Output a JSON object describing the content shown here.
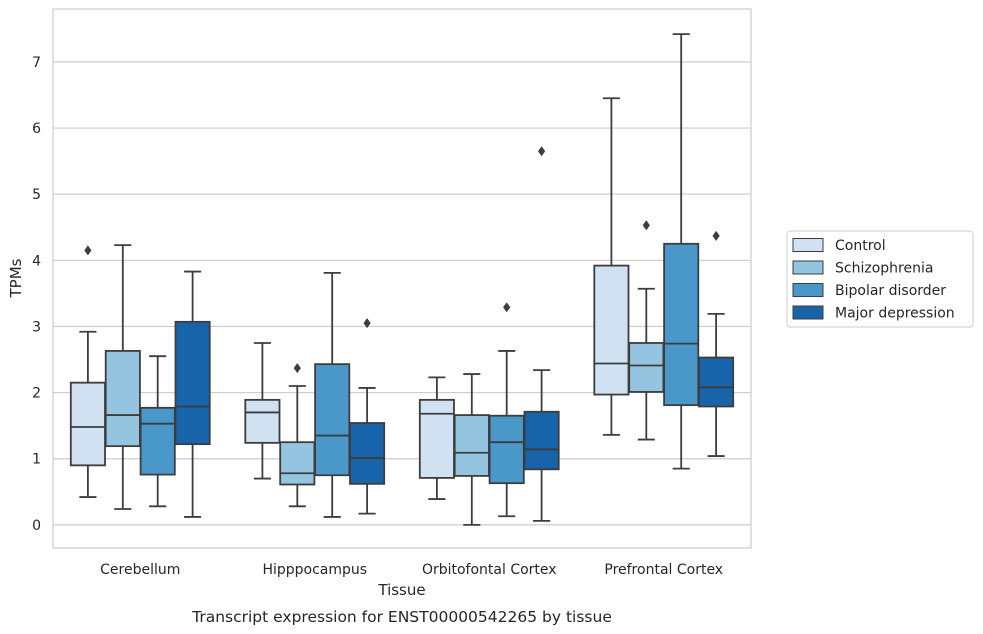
{
  "chart_data": {
    "type": "box",
    "title": "",
    "caption": "Transcript expression for ENST00000542265 by tissue",
    "xlabel": "Tissue",
    "ylabel": "TPMs",
    "ylim": [
      -0.35,
      7.8
    ],
    "yticks": [
      0,
      1,
      2,
      3,
      4,
      5,
      6,
      7
    ],
    "grid": "horizontal",
    "legend_position": "right",
    "categories": [
      "Cerebellum",
      "Hipppocampus",
      "Orbitofontal Cortex",
      "Prefrontal Cortex"
    ],
    "series": [
      {
        "name": "Control",
        "color": "#d0e1f2",
        "boxes": [
          {
            "whisker_low": 0.42,
            "q1": 0.9,
            "median": 1.48,
            "q3": 2.15,
            "whisker_high": 2.92,
            "outliers": [
              4.15
            ]
          },
          {
            "whisker_low": 0.7,
            "q1": 1.24,
            "median": 1.7,
            "q3": 1.89,
            "whisker_high": 2.75,
            "outliers": []
          },
          {
            "whisker_low": 0.39,
            "q1": 0.71,
            "median": 1.68,
            "q3": 1.89,
            "whisker_high": 2.23,
            "outliers": []
          },
          {
            "whisker_low": 1.36,
            "q1": 1.97,
            "median": 2.44,
            "q3": 3.92,
            "whisker_high": 6.45,
            "outliers": []
          }
        ]
      },
      {
        "name": "Schizophrenia",
        "color": "#94c4df",
        "boxes": [
          {
            "whisker_low": 0.24,
            "q1": 1.19,
            "median": 1.66,
            "q3": 2.63,
            "whisker_high": 4.23,
            "outliers": []
          },
          {
            "whisker_low": 0.28,
            "q1": 0.61,
            "median": 0.78,
            "q3": 1.25,
            "whisker_high": 2.1,
            "outliers": [
              2.37
            ]
          },
          {
            "whisker_low": 0.0,
            "q1": 0.74,
            "median": 1.09,
            "q3": 1.66,
            "whisker_high": 2.28,
            "outliers": []
          },
          {
            "whisker_low": 1.29,
            "q1": 2.01,
            "median": 2.41,
            "q3": 2.75,
            "whisker_high": 3.57,
            "outliers": [
              4.53
            ]
          }
        ]
      },
      {
        "name": "Bipolar disorder",
        "color": "#4a98c9",
        "boxes": [
          {
            "whisker_low": 0.28,
            "q1": 0.76,
            "median": 1.53,
            "q3": 1.77,
            "whisker_high": 2.55,
            "outliers": []
          },
          {
            "whisker_low": 0.12,
            "q1": 0.75,
            "median": 1.35,
            "q3": 2.43,
            "whisker_high": 3.81,
            "outliers": []
          },
          {
            "whisker_low": 0.13,
            "q1": 0.63,
            "median": 1.25,
            "q3": 1.65,
            "whisker_high": 2.63,
            "outliers": [
              3.29
            ]
          },
          {
            "whisker_low": 0.85,
            "q1": 1.81,
            "median": 2.74,
            "q3": 4.25,
            "whisker_high": 7.42,
            "outliers": []
          }
        ]
      },
      {
        "name": "Major depression",
        "color": "#1764ab",
        "boxes": [
          {
            "whisker_low": 0.12,
            "q1": 1.22,
            "median": 1.79,
            "q3": 3.07,
            "whisker_high": 3.83,
            "outliers": []
          },
          {
            "whisker_low": 0.17,
            "q1": 0.62,
            "median": 1.01,
            "q3": 1.54,
            "whisker_high": 2.07,
            "outliers": [
              3.05
            ]
          },
          {
            "whisker_low": 0.06,
            "q1": 0.84,
            "median": 1.14,
            "q3": 1.71,
            "whisker_high": 2.34,
            "outliers": [
              5.65
            ]
          },
          {
            "whisker_low": 1.04,
            "q1": 1.79,
            "median": 2.08,
            "q3": 2.53,
            "whisker_high": 3.19,
            "outliers": [
              4.37
            ]
          }
        ]
      }
    ]
  }
}
